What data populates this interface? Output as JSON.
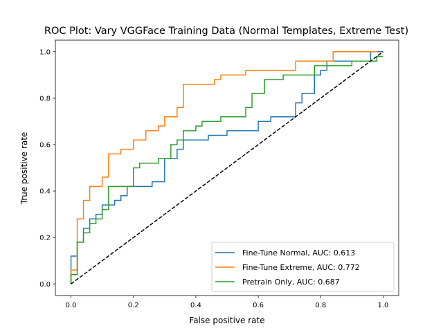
{
  "chart_data": {
    "type": "line",
    "title": "ROC Plot: Vary VGGFace Training Data (Normal Templates, Extreme Test)",
    "xlabel": "False positive rate",
    "ylabel": "True positive rate",
    "xlim": [
      -0.05,
      1.05
    ],
    "ylim": [
      -0.05,
      1.05
    ],
    "xticks": [
      0.0,
      0.2,
      0.4,
      0.6,
      0.8,
      1.0
    ],
    "yticks": [
      0.0,
      0.2,
      0.4,
      0.6,
      0.8,
      1.0
    ],
    "xtick_labels": [
      "0.0",
      "0.2",
      "0.4",
      "0.6",
      "0.8",
      "1.0"
    ],
    "ytick_labels": [
      "0.0",
      "0.2",
      "0.4",
      "0.6",
      "0.8",
      "1.0"
    ],
    "grid": false,
    "legend_position": "bottom-right",
    "reference_line": {
      "x": [
        0,
        1
      ],
      "y": [
        0,
        1
      ],
      "style": "dashed",
      "color": "#000000"
    },
    "series": [
      {
        "name": "Fine-Tune Normal, AUC: 0.613",
        "color": "#1f77b4",
        "step_points": [
          [
            0,
            0
          ],
          [
            0,
            0.12
          ],
          [
            0.02,
            0.12
          ],
          [
            0.02,
            0.18
          ],
          [
            0.04,
            0.18
          ],
          [
            0.04,
            0.24
          ],
          [
            0.06,
            0.24
          ],
          [
            0.06,
            0.28
          ],
          [
            0.08,
            0.28
          ],
          [
            0.08,
            0.3
          ],
          [
            0.1,
            0.3
          ],
          [
            0.1,
            0.34
          ],
          [
            0.14,
            0.34
          ],
          [
            0.14,
            0.36
          ],
          [
            0.16,
            0.36
          ],
          [
            0.16,
            0.38
          ],
          [
            0.18,
            0.38
          ],
          [
            0.18,
            0.42
          ],
          [
            0.26,
            0.42
          ],
          [
            0.26,
            0.44
          ],
          [
            0.3,
            0.44
          ],
          [
            0.3,
            0.54
          ],
          [
            0.34,
            0.54
          ],
          [
            0.34,
            0.58
          ],
          [
            0.36,
            0.58
          ],
          [
            0.36,
            0.62
          ],
          [
            0.44,
            0.62
          ],
          [
            0.44,
            0.64
          ],
          [
            0.5,
            0.64
          ],
          [
            0.5,
            0.66
          ],
          [
            0.6,
            0.66
          ],
          [
            0.6,
            0.7
          ],
          [
            0.64,
            0.7
          ],
          [
            0.64,
            0.72
          ],
          [
            0.72,
            0.72
          ],
          [
            0.72,
            0.78
          ],
          [
            0.74,
            0.78
          ],
          [
            0.74,
            0.82
          ],
          [
            0.78,
            0.82
          ],
          [
            0.78,
            0.9
          ],
          [
            0.8,
            0.9
          ],
          [
            0.8,
            0.92
          ],
          [
            0.82,
            0.92
          ],
          [
            0.82,
            0.96
          ],
          [
            0.96,
            0.96
          ],
          [
            0.96,
            1.0
          ],
          [
            1.0,
            1.0
          ]
        ]
      },
      {
        "name": "Fine-Tune Extreme, AUC: 0.772",
        "color": "#ff7f0e",
        "step_points": [
          [
            0,
            0
          ],
          [
            0,
            0.06
          ],
          [
            0.02,
            0.06
          ],
          [
            0.02,
            0.28
          ],
          [
            0.04,
            0.28
          ],
          [
            0.04,
            0.36
          ],
          [
            0.06,
            0.36
          ],
          [
            0.06,
            0.42
          ],
          [
            0.1,
            0.42
          ],
          [
            0.1,
            0.46
          ],
          [
            0.12,
            0.46
          ],
          [
            0.12,
            0.56
          ],
          [
            0.16,
            0.56
          ],
          [
            0.16,
            0.58
          ],
          [
            0.2,
            0.58
          ],
          [
            0.2,
            0.62
          ],
          [
            0.24,
            0.62
          ],
          [
            0.24,
            0.66
          ],
          [
            0.28,
            0.66
          ],
          [
            0.28,
            0.68
          ],
          [
            0.3,
            0.68
          ],
          [
            0.3,
            0.72
          ],
          [
            0.34,
            0.72
          ],
          [
            0.34,
            0.76
          ],
          [
            0.36,
            0.76
          ],
          [
            0.36,
            0.86
          ],
          [
            0.46,
            0.86
          ],
          [
            0.46,
            0.88
          ],
          [
            0.48,
            0.88
          ],
          [
            0.48,
            0.9
          ],
          [
            0.56,
            0.9
          ],
          [
            0.56,
            0.92
          ],
          [
            0.72,
            0.92
          ],
          [
            0.72,
            0.96
          ],
          [
            0.84,
            0.96
          ],
          [
            0.84,
            1.0
          ],
          [
            0.98,
            1.0
          ]
        ]
      },
      {
        "name": "Pretrain Only, AUC: 0.687",
        "color": "#2ca02c",
        "step_points": [
          [
            0,
            0
          ],
          [
            0,
            0.04
          ],
          [
            0.02,
            0.04
          ],
          [
            0.02,
            0.18
          ],
          [
            0.04,
            0.18
          ],
          [
            0.04,
            0.22
          ],
          [
            0.06,
            0.22
          ],
          [
            0.06,
            0.26
          ],
          [
            0.08,
            0.26
          ],
          [
            0.08,
            0.28
          ],
          [
            0.1,
            0.28
          ],
          [
            0.1,
            0.32
          ],
          [
            0.12,
            0.32
          ],
          [
            0.12,
            0.42
          ],
          [
            0.2,
            0.42
          ],
          [
            0.2,
            0.5
          ],
          [
            0.22,
            0.5
          ],
          [
            0.22,
            0.52
          ],
          [
            0.28,
            0.52
          ],
          [
            0.28,
            0.54
          ],
          [
            0.32,
            0.54
          ],
          [
            0.32,
            0.6
          ],
          [
            0.34,
            0.6
          ],
          [
            0.34,
            0.62
          ],
          [
            0.36,
            0.62
          ],
          [
            0.36,
            0.66
          ],
          [
            0.4,
            0.66
          ],
          [
            0.4,
            0.68
          ],
          [
            0.42,
            0.68
          ],
          [
            0.42,
            0.7
          ],
          [
            0.48,
            0.7
          ],
          [
            0.48,
            0.72
          ],
          [
            0.56,
            0.72
          ],
          [
            0.56,
            0.76
          ],
          [
            0.58,
            0.76
          ],
          [
            0.58,
            0.82
          ],
          [
            0.62,
            0.82
          ],
          [
            0.62,
            0.88
          ],
          [
            0.68,
            0.88
          ],
          [
            0.68,
            0.9
          ],
          [
            0.78,
            0.9
          ],
          [
            0.78,
            0.94
          ],
          [
            0.9,
            0.94
          ],
          [
            0.9,
            0.96
          ],
          [
            0.98,
            0.96
          ],
          [
            0.98,
            0.98
          ],
          [
            1.0,
            0.98
          ]
        ]
      }
    ]
  }
}
